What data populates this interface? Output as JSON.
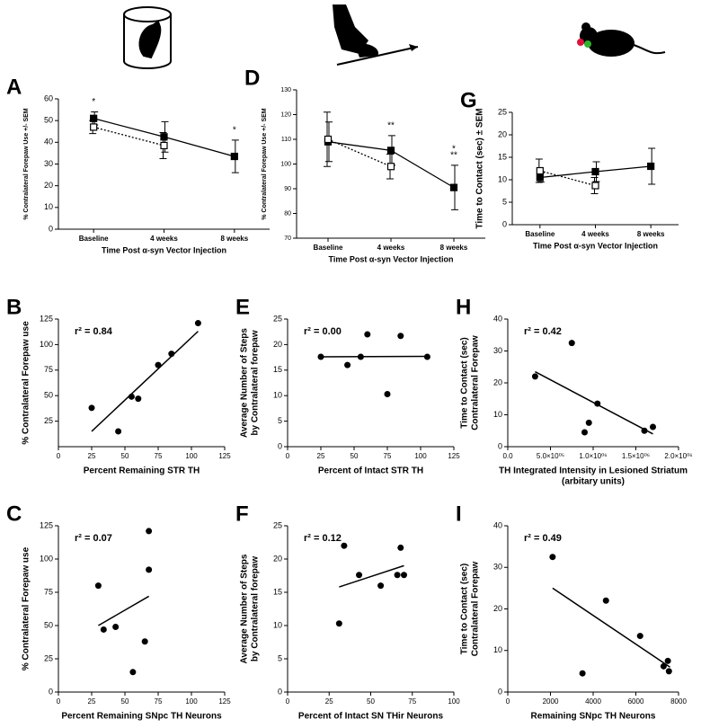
{
  "chart_data": [
    {
      "type": "line",
      "panel_label": "A",
      "y_label": "% Contralateral Forepaw Use +/- SEM",
      "x_label": "Time Post α-syn Vector Injection",
      "categories": [
        "Baseline",
        "4 weeks",
        "8 weeks"
      ],
      "series": [
        {
          "color": "#000000",
          "marker": "filled",
          "line_style": "solid",
          "values": [
            51,
            42.5,
            33.5
          ],
          "errors": [
            3,
            7,
            7.5
          ]
        },
        {
          "color": "#000000",
          "marker": "open",
          "line_style": "dotted",
          "values": [
            47,
            38.5,
            null
          ],
          "errors": [
            3,
            6,
            null
          ]
        }
      ],
      "annotations": [
        {
          "text": "*",
          "at": "Baseline"
        },
        {
          "text": "*",
          "at": "8 weeks"
        }
      ],
      "ylim": [
        0,
        60
      ],
      "yticks": [
        0,
        10,
        20,
        30,
        40,
        50,
        60
      ]
    },
    {
      "type": "line",
      "panel_label": "D",
      "y_label": "% Contralateral Forepaw Use +/- SEM",
      "x_label": "Time Post α-syn Vector Injection",
      "categories": [
        "Baseline",
        "4 weeks",
        "8 weeks"
      ],
      "series": [
        {
          "color": "#000000",
          "marker": "filled",
          "line_style": "solid",
          "values": [
            109,
            105.5,
            90.5
          ],
          "errors": [
            8,
            6,
            9
          ]
        },
        {
          "color": "#000000",
          "marker": "open",
          "line_style": "dotted",
          "values": [
            110,
            99,
            null
          ],
          "errors": [
            11,
            5,
            null
          ]
        }
      ],
      "annotations": [
        {
          "text": "**",
          "at": "4 weeks"
        },
        {
          "text": "**",
          "at": "8 weeks"
        },
        {
          "text": "*",
          "at": "8 weeks"
        }
      ],
      "ylim": [
        70,
        130
      ],
      "yticks": [
        70,
        80,
        90,
        100,
        110,
        120,
        130
      ]
    },
    {
      "type": "line",
      "panel_label": "G",
      "y_label": "Time to Contact (sec) ± SEM",
      "x_label": "Time Post α-syn Vector Injection",
      "categories": [
        "Baseline",
        "4 weeks",
        "8 weeks"
      ],
      "series": [
        {
          "color": "#000000",
          "marker": "filled",
          "line_style": "solid",
          "values": [
            10.5,
            11.8,
            13
          ],
          "errors": [
            1,
            2.2,
            4
          ]
        },
        {
          "color": "#000000",
          "marker": "open",
          "line_style": "dotted",
          "values": [
            12,
            8.7,
            null
          ],
          "errors": [
            2.6,
            1.8,
            null
          ]
        }
      ],
      "annotations": [],
      "ylim": [
        0,
        25
      ],
      "yticks": [
        0,
        5,
        10,
        15,
        20,
        25
      ]
    },
    {
      "type": "scatter",
      "panel_label": "B",
      "r2_label": "r² = 0.84",
      "y_label": "% Contralateral Forepaw use",
      "x_label": "Percent Remaining  STR TH",
      "x": [
        25,
        45,
        55,
        60,
        75,
        85,
        105
      ],
      "values": [
        38,
        15,
        49,
        47,
        80,
        91,
        121
      ],
      "color": "#000000",
      "fit": {
        "x": [
          25,
          105
        ],
        "y": [
          15,
          113
        ]
      },
      "xlim": [
        0,
        125
      ],
      "xticks": [
        0,
        25,
        50,
        75,
        100,
        125
      ],
      "ylim": [
        0,
        125
      ],
      "yticks": [
        25,
        50,
        75,
        100,
        125
      ]
    },
    {
      "type": "scatter",
      "panel_label": "E",
      "r2_label": "r² = 0.00",
      "y_label": [
        "Average Number of Steps",
        "by Contralateral forepaw"
      ],
      "x_label": "Percent of Intact STR TH",
      "x": [
        25,
        45,
        55,
        60,
        75,
        85,
        105
      ],
      "values": [
        17.6,
        16,
        17.6,
        22,
        10.3,
        21.7,
        17.6
      ],
      "color": "#000000",
      "fit": {
        "x": [
          25,
          105
        ],
        "y": [
          17.6,
          17.7
        ]
      },
      "xlim": [
        0,
        125
      ],
      "xticks": [
        0,
        25,
        50,
        75,
        100,
        125
      ],
      "ylim": [
        0,
        25
      ],
      "yticks": [
        0,
        5,
        10,
        15,
        20,
        25
      ]
    },
    {
      "type": "scatter",
      "panel_label": "H",
      "r2_label": "r² = 0.42",
      "y_label": [
        "Time to Contact (sec)",
        "Contralateral Forepaw"
      ],
      "x_label": [
        "TH Integrated Intensity in Lesioned Striatum",
        "(arbitary units)"
      ],
      "x": [
        320000,
        750000,
        900000,
        950000,
        1050000,
        1600000,
        1700000
      ],
      "values": [
        22,
        32.5,
        4.5,
        7.5,
        13.5,
        5,
        6.2
      ],
      "color": "#000000",
      "fit": {
        "x": [
          320000,
          1700000
        ],
        "y": [
          23.5,
          4
        ]
      },
      "xlim": [
        0,
        2000000
      ],
      "xticks": [
        {
          "value": 0,
          "label": "0.0"
        },
        {
          "value": 500000,
          "label": "5.0×10⁰⁵"
        },
        {
          "value": 1000000,
          "label": "1.0×10⁰⁶"
        },
        {
          "value": 1500000,
          "label": "1.5×10⁰⁶"
        },
        {
          "value": 2000000,
          "label": "2.0×10⁰⁶"
        }
      ],
      "ylim": [
        0,
        40
      ],
      "yticks": [
        0,
        10,
        20,
        30,
        40
      ]
    },
    {
      "type": "scatter",
      "panel_label": "C",
      "r2_label": "r² = 0.07",
      "y_label": "% Contralateral Forepaw use",
      "x_label": "Percent Remaining  SNpc TH Neurons",
      "x": [
        30,
        34,
        43,
        56,
        65,
        68,
        68
      ],
      "values": [
        80,
        47,
        49,
        15,
        38,
        92,
        121
      ],
      "color": "#000000",
      "fit": {
        "x": [
          30,
          68
        ],
        "y": [
          50,
          72
        ]
      },
      "xlim": [
        0,
        125
      ],
      "xticks": [
        0,
        25,
        50,
        75,
        100,
        125
      ],
      "ylim": [
        0,
        125
      ],
      "yticks": [
        0,
        25,
        50,
        75,
        100,
        125
      ]
    },
    {
      "type": "scatter",
      "panel_label": "F",
      "r2_label": "r² = 0.12",
      "y_label": [
        "Average Number of Steps",
        "by Contralateral forepaw"
      ],
      "x_label": "Percent of Intact SN THir Neurons",
      "x": [
        31,
        34,
        43,
        56,
        66,
        68,
        70
      ],
      "values": [
        10.3,
        22,
        17.6,
        16,
        17.6,
        21.7,
        17.6
      ],
      "color": "#000000",
      "fit": {
        "x": [
          31,
          70
        ],
        "y": [
          15.8,
          19
        ]
      },
      "xlim": [
        0,
        100
      ],
      "xticks": [
        0,
        25,
        50,
        75,
        100
      ],
      "ylim": [
        0,
        25
      ],
      "yticks": [
        0,
        5,
        10,
        15,
        20,
        25
      ]
    },
    {
      "type": "scatter",
      "panel_label": "I",
      "r2_label": "r² = 0.49",
      "y_label": [
        "Time to Contact (sec)",
        "Contralateral Forepaw"
      ],
      "x_label": "Remaining SNpc TH Neurons",
      "x": [
        2100,
        3500,
        4600,
        6200,
        7300,
        7500,
        7550
      ],
      "values": [
        32.5,
        4.5,
        22,
        13.5,
        6.2,
        7.5,
        5
      ],
      "color": "#000000",
      "fit": {
        "x": [
          2100,
          7600
        ],
        "y": [
          25,
          6
        ]
      },
      "xlim": [
        0,
        8000
      ],
      "xticks": [
        0,
        2000,
        4000,
        6000,
        8000
      ],
      "ylim": [
        0,
        40
      ],
      "yticks": [
        0,
        10,
        20,
        30,
        40
      ]
    }
  ]
}
